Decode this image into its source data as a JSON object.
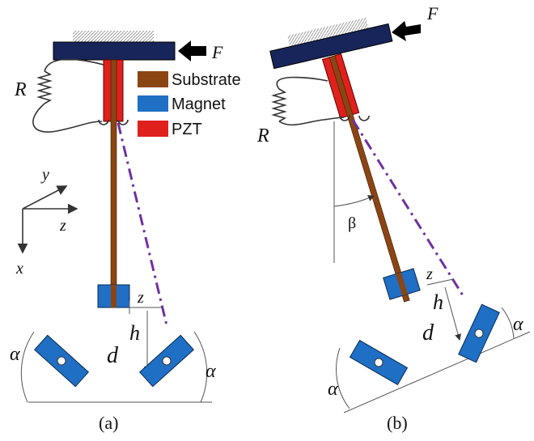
{
  "legend": [
    {
      "label": "Substrate"
    },
    {
      "label": "Magnet"
    },
    {
      "label": "PZT"
    }
  ],
  "panel_a": {
    "force": "F",
    "resistor": "R",
    "axes": {
      "y": "y",
      "z": "z",
      "x": "x"
    },
    "offset": "z",
    "height": "h",
    "distance": "d",
    "angle_left": "α",
    "angle_right": "α",
    "caption": "(a)"
  },
  "panel_b": {
    "force": "F",
    "resistor": "R",
    "tilt": "β",
    "offset": "z",
    "height": "h",
    "distance": "d",
    "angle_left": "α",
    "angle_right": "α",
    "caption": "(b)"
  }
}
